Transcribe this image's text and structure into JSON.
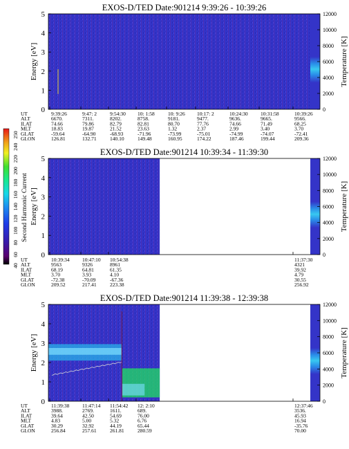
{
  "colors": {
    "background_fill": "#3434c8",
    "band_cyan": "#28b0e8",
    "band_light_cyan": "#7fe0ff",
    "band_green": "#20e060"
  },
  "colorbar": {
    "label": "Second Harmonic Current",
    "ticks": [
      "60",
      "80",
      "100",
      "120",
      "140",
      "160",
      "180",
      "200",
      "220",
      "240",
      "250"
    ],
    "bottom_label": "40"
  },
  "chart_data": [
    {
      "type": "heatmap",
      "title": "EXOS-D/TED    Date:901214   9:39:26 - 10:39:26",
      "ylabel": "Energy [eV]",
      "ylabel_right": "Temperature [K]",
      "ylim": [
        0,
        5
      ],
      "y_ticks": [
        0,
        1,
        2,
        3,
        4,
        5
      ],
      "ylim_right": [
        0,
        12000
      ],
      "y_ticks_right": [
        0,
        2000,
        4000,
        6000,
        8000,
        10000,
        12000
      ],
      "data_coverage_fraction": 1.0,
      "row_labels": [
        "UT",
        "ALT",
        "ILAT",
        "MLT",
        "GLAT",
        "GLON"
      ],
      "columns": [
        [
          "9:39:26",
          "6670.",
          "74.66",
          "18.83",
          "-59.64",
          "126.81"
        ],
        [
          "9:47: 2",
          "7311.",
          "79.86",
          "19.87",
          "-64.90",
          "132.71"
        ],
        [
          "9:54:30",
          "8202.",
          "82.79",
          "21.52",
          "-68.93",
          "140.10"
        ],
        [
          "10: 1:58",
          "8758.",
          "82.81",
          "23.63",
          "-71.96",
          "149.48"
        ],
        [
          "10: 9:26",
          "9181.",
          "80.70",
          "1.32",
          "-73.99",
          "160.95"
        ],
        [
          "10:17: 2",
          "9477.",
          "77.76",
          "2.37",
          "-75.01",
          "174.22"
        ],
        [
          "10:24:30",
          "9636.",
          "74.66",
          "2.99",
          "-74.99",
          "187.46"
        ],
        [
          "10:31:58",
          "9665.",
          "71.49",
          "3.40",
          "-74.07",
          "199.44"
        ],
        [
          "10:39:26",
          "9566.",
          "68.25",
          "3.70",
          "-72.41",
          "209.36"
        ]
      ]
    },
    {
      "type": "heatmap",
      "title": "EXOS-D/TED    Date:901214   10:39:34 - 11:39:30",
      "ylabel": "Energy [eV]",
      "ylabel_right": "Temperature [K]",
      "ylim": [
        0,
        5
      ],
      "y_ticks": [
        0,
        1,
        2,
        3,
        4,
        5
      ],
      "ylim_right": [
        0,
        12000
      ],
      "y_ticks_right": [
        0,
        2000,
        4000,
        6000,
        8000,
        10000,
        12000
      ],
      "data_coverage_fraction": 0.41,
      "row_labels": [
        "UT",
        "ALT",
        "ILAT",
        "MLT",
        "GLAT",
        "GLON"
      ],
      "columns": [
        [
          "10:39:34",
          "9563",
          "68.19",
          "3.70",
          "-72.38",
          "209.52"
        ],
        [
          "10:47:10",
          "9326",
          "64.81",
          "3.93",
          "-70.09",
          "217.41"
        ],
        [
          "10:54:38",
          "8961",
          "61.35",
          "4.10",
          "-67.36",
          "223.38"
        ],
        [
          "11:37:30",
          "4321",
          "39.92",
          "4.79",
          "30.55",
          "256.92"
        ]
      ]
    },
    {
      "type": "heatmap",
      "title": "EXOS-D/TED    Date:901214   11:39:38 - 12:39:38",
      "ylabel": "Energy [eV]",
      "ylabel_right": "Temperature [K]",
      "ylim": [
        0,
        5
      ],
      "y_ticks": [
        0,
        1,
        2,
        3,
        4,
        5
      ],
      "ylim_right": [
        0,
        12000
      ],
      "y_ticks_right": [
        0,
        2000,
        4000,
        6000,
        8000,
        10000,
        12000
      ],
      "data_coverage_fraction": 0.41,
      "row_labels": [
        "UT",
        "ALT",
        "ILAT",
        "MLT",
        "GLAT",
        "GLON"
      ],
      "columns": [
        [
          "11:39:38",
          "3988.",
          "39.64",
          "4.83",
          "30.29",
          "256.84"
        ],
        [
          "11:47:14",
          "2769.",
          "42.50",
          "5.00",
          "32.92",
          "257.61"
        ],
        [
          "11:54:42",
          "1611.",
          "54.69",
          "5.32",
          "44.19",
          "261.81"
        ],
        [
          "12: 2:10",
          "689.",
          "76.00",
          "6.76",
          "65.44",
          "280.59"
        ],
        [
          "12:37:46",
          "3536.",
          "45.93",
          "16.94",
          "-35.76",
          "70.00"
        ]
      ]
    }
  ]
}
